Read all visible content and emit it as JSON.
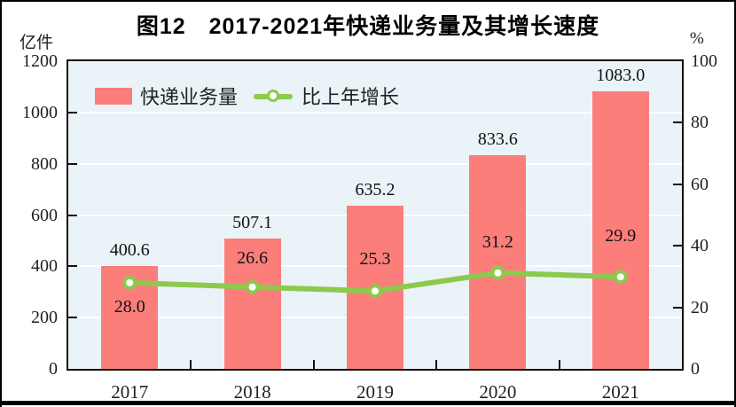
{
  "figure": {
    "title": "图12　2017-2021年快递业务量及其增长速度",
    "left_axis_unit": "亿件",
    "right_axis_unit": "%"
  },
  "chart_data": {
    "type": "bar",
    "subtype": "bar-line-combo-dual-axis",
    "title": "图12　2017-2021年快递业务量及其增长速度",
    "categories": [
      "2017",
      "2018",
      "2019",
      "2020",
      "2021"
    ],
    "series": [
      {
        "name": "快递业务量",
        "type": "bar",
        "axis": "left",
        "unit": "亿件",
        "color": "#FB7E7B",
        "values": [
          400.6,
          507.1,
          635.2,
          833.6,
          1083.0
        ]
      },
      {
        "name": "比上年增长",
        "type": "line",
        "axis": "right",
        "unit": "%",
        "color": "#8CC94D",
        "marker": "circle-white-fill-green-ring",
        "values": [
          28.0,
          26.6,
          25.3,
          31.2,
          29.9
        ]
      }
    ],
    "left_axis": {
      "label": "亿件",
      "min": 0,
      "max": 1200,
      "tick_step": 200,
      "ticks": [
        0,
        200,
        400,
        600,
        800,
        1000,
        1200
      ]
    },
    "right_axis": {
      "label": "%",
      "min": 0,
      "max": 100,
      "tick_step": 20,
      "ticks": [
        0,
        20,
        40,
        60,
        80,
        100
      ]
    },
    "legend": [
      "快递业务量",
      "比上年增长"
    ],
    "legend_position": "top-left-inside-plot",
    "grid": "horizontal-white-gridlines",
    "plot_background_color": "#EAF3F7",
    "data_labels_decimals": 1
  }
}
